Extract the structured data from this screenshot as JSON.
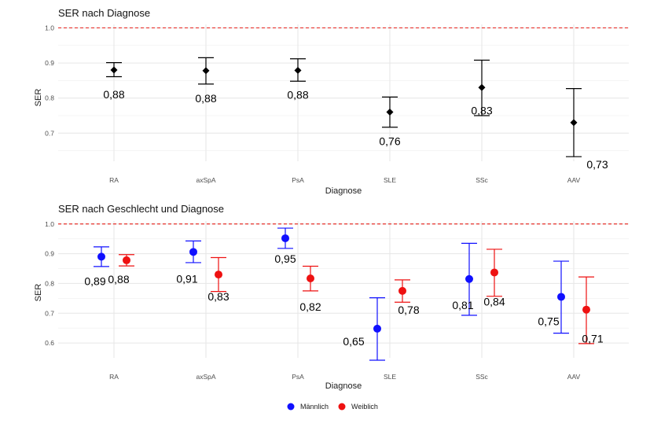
{
  "chart_data": [
    {
      "type": "errorbar",
      "title": "SER nach Diagnose",
      "xlabel": "Diagnose",
      "ylabel": "SER",
      "categories": [
        "RA",
        "axSpA",
        "PsA",
        "SLE",
        "SSc",
        "AAV"
      ],
      "ylim": [
        0.62,
        1.01
      ],
      "yticks": [
        "0.7",
        "0.8",
        "0.9",
        "1.0"
      ],
      "reference_line": 1.0,
      "reference_color": "#e8322c",
      "grid": true,
      "series": [
        {
          "color": "#000000",
          "marker": "diamond",
          "values": [
            0.88,
            0.878,
            0.879,
            0.76,
            0.83,
            0.73
          ],
          "lower": [
            0.861,
            0.84,
            0.848,
            0.717,
            0.75,
            0.633
          ],
          "upper": [
            0.901,
            0.915,
            0.912,
            0.803,
            0.908,
            0.827
          ],
          "labels": [
            "0,88",
            "0,88",
            "0,88",
            "0,76",
            "0,83",
            "0,73"
          ]
        }
      ]
    },
    {
      "type": "errorbar",
      "title": "SER nach Geschlecht und Diagnose",
      "xlabel": "Diagnose",
      "ylabel": "SER",
      "categories": [
        "RA",
        "axSpA",
        "PsA",
        "SLE",
        "SSc",
        "AAV"
      ],
      "ylim": [
        0.55,
        1.01
      ],
      "yticks": [
        "0.6",
        "0.7",
        "0.8",
        "0.9",
        "1.0"
      ],
      "reference_line": 1.0,
      "reference_color": "#e8322c",
      "grid": true,
      "legend_position": "bottom",
      "series": [
        {
          "name": "Männlich",
          "color": "#1010ff",
          "marker": "circle",
          "values": [
            0.89,
            0.906,
            0.952,
            0.648,
            0.815,
            0.755
          ],
          "lower": [
            0.857,
            0.87,
            0.918,
            0.542,
            0.693,
            0.633
          ],
          "upper": [
            0.923,
            0.943,
            0.986,
            0.752,
            0.935,
            0.875
          ],
          "labels": [
            "0,89",
            "0,91",
            "0,95",
            "0,65",
            "0,81",
            "0,75"
          ]
        },
        {
          "name": "Weiblich",
          "color": "#ee1111",
          "marker": "circle",
          "values": [
            0.878,
            0.83,
            0.817,
            0.775,
            0.837,
            0.712
          ],
          "lower": [
            0.859,
            0.773,
            0.775,
            0.737,
            0.757,
            0.598
          ],
          "upper": [
            0.897,
            0.887,
            0.858,
            0.812,
            0.915,
            0.822
          ],
          "labels": [
            "0,88",
            "0,83",
            "0,82",
            "0,78",
            "0,84",
            "0,71"
          ]
        }
      ]
    }
  ]
}
